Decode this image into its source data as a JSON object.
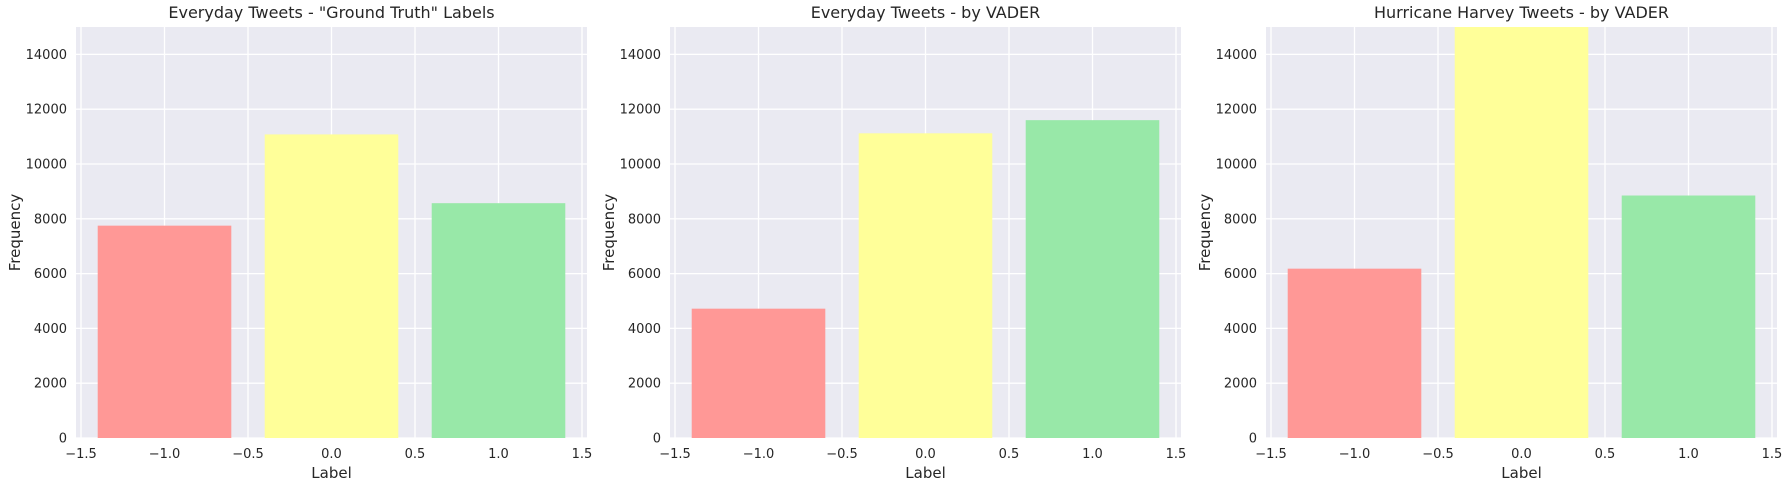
{
  "figure": {
    "background": "#ffffff",
    "plot_background": "#eaeaf2",
    "grid_color": "#ffffff"
  },
  "chart_data": [
    {
      "type": "bar",
      "title": "Everyday Tweets - \"Ground Truth\" Labels",
      "xlabel": "Label",
      "ylabel": "Frequency",
      "x": [
        -1.0,
        0.0,
        1.0
      ],
      "values": [
        7750,
        11080,
        8570
      ],
      "bar_width": 0.8,
      "colors": [
        "#ff9896",
        "#ffff99",
        "#98e8a8"
      ],
      "xlim": [
        -1.53,
        1.53
      ],
      "ylim": [
        0,
        15000
      ],
      "xticks": [
        -1.5,
        -1.0,
        -0.5,
        0.0,
        0.5,
        1.0,
        1.5
      ],
      "xtick_labels": [
        "−1.5",
        "−1.0",
        "−0.5",
        "0.0",
        "0.5",
        "1.0",
        "1.5"
      ],
      "yticks": [
        0,
        2000,
        4000,
        6000,
        8000,
        10000,
        12000,
        14000
      ],
      "ytick_labels": [
        "0",
        "2000",
        "4000",
        "6000",
        "8000",
        "10000",
        "12000",
        "14000"
      ],
      "grid": true
    },
    {
      "type": "bar",
      "title": "Everyday Tweets - by VADER",
      "xlabel": "Label",
      "ylabel": "Frequency",
      "x": [
        -1.0,
        0.0,
        1.0
      ],
      "values": [
        4720,
        11120,
        11600
      ],
      "bar_width": 0.8,
      "colors": [
        "#ff9896",
        "#ffff99",
        "#98e8a8"
      ],
      "xlim": [
        -1.53,
        1.53
      ],
      "ylim": [
        0,
        15000
      ],
      "xticks": [
        -1.5,
        -1.0,
        -0.5,
        0.0,
        0.5,
        1.0,
        1.5
      ],
      "xtick_labels": [
        "−1.5",
        "−1.0",
        "−0.5",
        "0.0",
        "0.5",
        "1.0",
        "1.5"
      ],
      "yticks": [
        0,
        2000,
        4000,
        6000,
        8000,
        10000,
        12000,
        14000
      ],
      "ytick_labels": [
        "0",
        "2000",
        "4000",
        "6000",
        "8000",
        "10000",
        "12000",
        "14000"
      ],
      "grid": true
    },
    {
      "type": "bar",
      "title": "Hurricane Harvey Tweets - by VADER",
      "xlabel": "Label",
      "ylabel": "Frequency",
      "x": [
        -1.0,
        0.0,
        1.0
      ],
      "values": [
        6180,
        15000,
        8850
      ],
      "bar_width": 0.8,
      "colors": [
        "#ff9896",
        "#ffff99",
        "#98e8a8"
      ],
      "xlim": [
        -1.53,
        1.53
      ],
      "ylim": [
        0,
        15000
      ],
      "xticks": [
        -1.5,
        -1.0,
        -0.5,
        0.0,
        0.5,
        1.0,
        1.5
      ],
      "xtick_labels": [
        "−1.5",
        "−1.0",
        "−0.5",
        "0.0",
        "0.5",
        "1.0",
        "1.5"
      ],
      "yticks": [
        0,
        2000,
        4000,
        6000,
        8000,
        10000,
        12000,
        14000
      ],
      "ytick_labels": [
        "0",
        "2000",
        "4000",
        "6000",
        "8000",
        "10000",
        "12000",
        "14000"
      ],
      "grid": true
    }
  ]
}
